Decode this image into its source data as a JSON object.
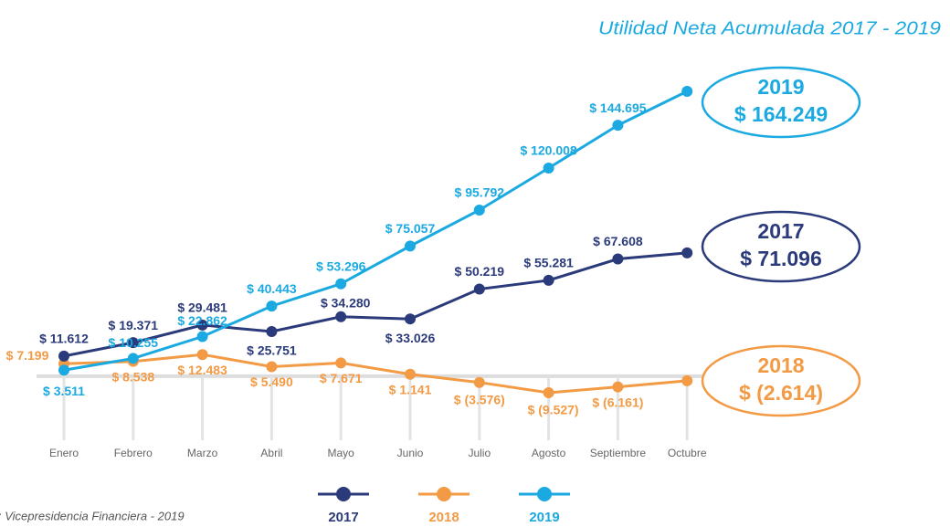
{
  "chart_data": {
    "type": "line",
    "title": "Utilidad Neta Acumulada 2017 - 2019",
    "source": ": Vicepresidencia Financiera - 2019",
    "categories": [
      "Enero",
      "Febrero",
      "Marzo",
      "Abril",
      "Mayo",
      "Junio",
      "Julio",
      "Agosto",
      "Septiembre",
      "Octubre"
    ],
    "series": [
      {
        "name": "2017",
        "color": "#2b3a7a",
        "values": [
          11612,
          19371,
          29481,
          25751,
          34280,
          33026,
          50219,
          55281,
          67608,
          71096
        ],
        "value_labels": [
          "$ 11.612",
          "$ 19.371",
          "$ 29.481",
          "$ 25.751",
          "$ 34.280",
          "$ 33.026",
          "$ 50.219",
          "$ 55.281",
          "$ 67.608",
          "$ 71.096"
        ]
      },
      {
        "name": "2018",
        "color": "#f39a45",
        "values": [
          7199,
          8538,
          12483,
          5490,
          7671,
          1141,
          -3576,
          -9527,
          -6161,
          -2614
        ],
        "value_labels": [
          "$ 7.199",
          "$ 8.538",
          "$ 12.483",
          "$ 5.490",
          "$ 7.671",
          "$ 1.141",
          "$ (3.576)",
          "$ (9.527)",
          "$ (6.161)",
          "$ (2.614)"
        ]
      },
      {
        "name": "2019",
        "color": "#1aa9e0",
        "values": [
          3511,
          10255,
          22862,
          40443,
          53296,
          75057,
          95792,
          120008,
          144695,
          164249
        ],
        "value_labels": [
          "$ 3.511",
          "$ 10.255",
          "$ 22.862",
          "$ 40.443",
          "$ 53.296",
          "$ 75.057",
          "$ 95.792",
          "$ 120.008",
          "$ 144.695",
          "$ 164.249"
        ]
      }
    ]
  }
}
